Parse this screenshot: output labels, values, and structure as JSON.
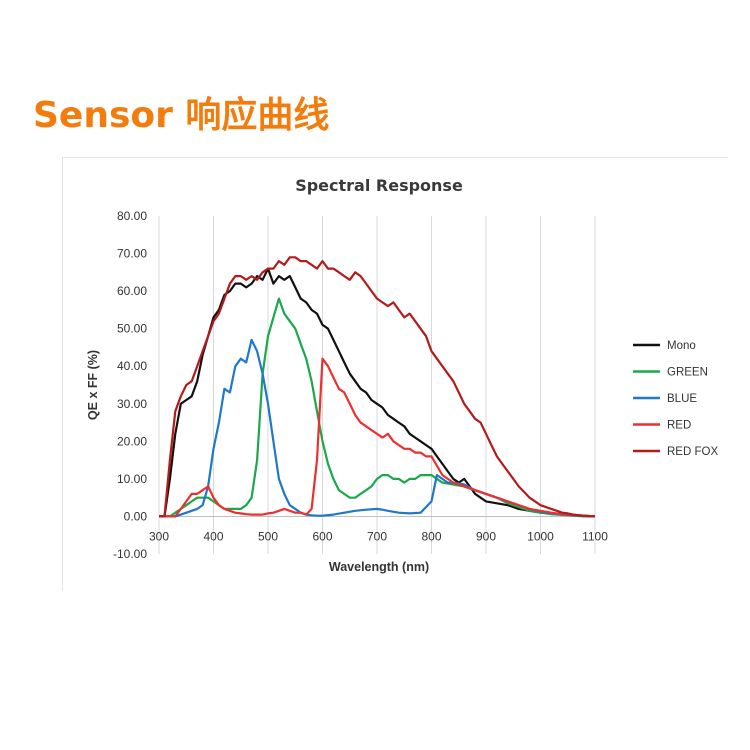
{
  "page": {
    "title": "Sensor 响应曲线",
    "title_color": "#f47c0c"
  },
  "chart_data": {
    "type": "line",
    "title": "Spectral Response",
    "xlabel": "Wavelength (nm)",
    "ylabel": "QE x FF (%)",
    "xlim": [
      300,
      1100
    ],
    "ylim": [
      -10,
      80
    ],
    "xticks": [
      300,
      400,
      500,
      600,
      700,
      800,
      900,
      1000,
      1100
    ],
    "xtick_labels": [
      "300",
      "400",
      "500",
      "600",
      "700",
      "800",
      "900",
      "1000",
      "1100"
    ],
    "yticks": [
      -10,
      0,
      10,
      20,
      30,
      40,
      50,
      60,
      70,
      80
    ],
    "ytick_labels": [
      "-10.00",
      "0.00",
      "10.00",
      "20.00",
      "30.00",
      "40.00",
      "50.00",
      "60.00",
      "70.00",
      "80.00"
    ],
    "grid": "vertical",
    "legend_position": "right",
    "series": [
      {
        "name": "Mono",
        "color": "#111111",
        "x": [
          300,
          310,
          320,
          330,
          340,
          350,
          360,
          370,
          380,
          390,
          400,
          410,
          420,
          430,
          440,
          450,
          460,
          470,
          480,
          490,
          500,
          510,
          520,
          530,
          540,
          550,
          560,
          570,
          580,
          590,
          600,
          610,
          620,
          630,
          640,
          650,
          660,
          670,
          680,
          690,
          700,
          710,
          720,
          730,
          740,
          750,
          760,
          770,
          780,
          790,
          800,
          810,
          820,
          830,
          840,
          850,
          860,
          870,
          880,
          890,
          900,
          920,
          940,
          960,
          980,
          1000,
          1020,
          1040,
          1060,
          1080,
          1100
        ],
        "y": [
          0,
          0,
          10,
          22,
          30,
          31,
          32,
          36,
          43,
          48,
          53,
          55,
          59,
          60,
          62,
          62,
          61,
          62,
          64,
          63,
          66,
          62,
          64,
          63,
          64,
          61,
          58,
          57,
          55,
          54,
          51,
          50,
          47,
          44,
          41,
          38,
          36,
          34,
          33,
          31,
          30,
          29,
          27,
          26,
          25,
          24,
          22,
          21,
          20,
          19,
          18,
          16,
          14,
          12,
          10,
          9,
          10,
          8,
          6,
          5,
          4,
          3.5,
          3,
          2,
          1.5,
          1,
          0.8,
          0.6,
          0.4,
          0.2,
          0
        ]
      },
      {
        "name": "GREEN",
        "color": "#1aa84b",
        "x": [
          300,
          320,
          340,
          350,
          360,
          370,
          380,
          390,
          400,
          410,
          420,
          430,
          440,
          450,
          460,
          470,
          480,
          490,
          500,
          510,
          520,
          530,
          540,
          550,
          560,
          570,
          580,
          590,
          600,
          610,
          620,
          630,
          640,
          650,
          660,
          670,
          680,
          690,
          700,
          710,
          720,
          730,
          740,
          750,
          760,
          770,
          780,
          790,
          800,
          810,
          820,
          840,
          860,
          880,
          900,
          920,
          940,
          960,
          980,
          1000,
          1020,
          1040,
          1060,
          1080,
          1100
        ],
        "y": [
          0,
          0,
          2,
          3,
          4,
          5,
          5,
          5,
          4,
          3,
          2,
          2,
          2,
          2,
          3,
          5,
          15,
          38,
          48,
          53,
          58,
          54,
          52,
          50,
          46,
          42,
          36,
          28,
          20,
          14,
          10,
          7,
          6,
          5,
          5,
          6,
          7,
          8,
          10,
          11,
          11,
          10,
          10,
          9,
          10,
          10,
          11,
          11,
          11,
          10,
          9,
          8.5,
          8,
          7,
          6,
          5,
          3.5,
          2.5,
          1.5,
          1,
          0.6,
          0.4,
          0.2,
          0,
          0
        ]
      },
      {
        "name": "BLUE",
        "color": "#1f78c8",
        "x": [
          300,
          330,
          350,
          360,
          370,
          380,
          390,
          400,
          410,
          420,
          430,
          440,
          450,
          460,
          470,
          480,
          490,
          500,
          510,
          520,
          530,
          540,
          550,
          560,
          570,
          580,
          590,
          600,
          620,
          640,
          660,
          680,
          700,
          710,
          720,
          740,
          760,
          780,
          800,
          810,
          820,
          830,
          840,
          860,
          880,
          900,
          920,
          940,
          960,
          980,
          1000,
          1020,
          1040,
          1060,
          1080,
          1100
        ],
        "y": [
          0,
          0,
          1,
          1.5,
          2,
          3,
          8,
          18,
          25,
          34,
          33,
          40,
          42,
          41,
          47,
          44,
          38,
          30,
          20,
          10,
          6,
          3,
          2,
          1,
          0.5,
          0.3,
          0.2,
          0.2,
          0.5,
          1,
          1.5,
          1.8,
          2,
          1.8,
          1.5,
          1,
          0.8,
          1,
          4,
          11,
          10,
          9,
          9,
          8.5,
          7,
          6,
          5,
          4,
          3,
          2,
          1.2,
          0.8,
          0.5,
          0.3,
          0.1,
          0
        ]
      },
      {
        "name": "RED",
        "color": "#ee2f2f",
        "x": [
          300,
          330,
          340,
          350,
          360,
          370,
          380,
          390,
          400,
          410,
          420,
          430,
          440,
          450,
          460,
          470,
          480,
          490,
          500,
          510,
          520,
          530,
          540,
          550,
          560,
          570,
          580,
          590,
          600,
          610,
          620,
          630,
          640,
          650,
          660,
          670,
          680,
          690,
          700,
          710,
          720,
          730,
          740,
          750,
          760,
          770,
          780,
          790,
          800,
          820,
          840,
          860,
          880,
          900,
          920,
          940,
          960,
          980,
          1000,
          1020,
          1040,
          1060,
          1080,
          1100
        ],
        "y": [
          0,
          0,
          2,
          4,
          6,
          6,
          7,
          8,
          5,
          3,
          2,
          1.5,
          1,
          0.8,
          0.6,
          0.5,
          0.5,
          0.5,
          0.8,
          1,
          1.5,
          2,
          1.5,
          1,
          1,
          0.5,
          2,
          15,
          42,
          40,
          37,
          34,
          33,
          30,
          27,
          25,
          24,
          23,
          22,
          21,
          22,
          20,
          19,
          18,
          18,
          17,
          17,
          16,
          16,
          11,
          9,
          8,
          7,
          6,
          5,
          4,
          3,
          2,
          1.5,
          1,
          0.6,
          0.4,
          0.2,
          0
        ]
      },
      {
        "name": "RED FOX",
        "color": "#b31b1b",
        "x": [
          300,
          310,
          320,
          330,
          340,
          350,
          360,
          370,
          380,
          390,
          400,
          410,
          420,
          430,
          440,
          450,
          460,
          470,
          480,
          490,
          500,
          510,
          520,
          530,
          540,
          550,
          560,
          570,
          580,
          590,
          600,
          610,
          620,
          630,
          640,
          650,
          660,
          670,
          680,
          690,
          700,
          710,
          720,
          730,
          740,
          750,
          760,
          770,
          780,
          790,
          800,
          810,
          820,
          830,
          840,
          850,
          860,
          870,
          880,
          890,
          900,
          910,
          920,
          930,
          940,
          950,
          960,
          970,
          980,
          990,
          1000,
          1010,
          1020,
          1030,
          1040,
          1050,
          1060,
          1070,
          1080,
          1090,
          1100
        ],
        "y": [
          0,
          0,
          15,
          28,
          32,
          35,
          36,
          40,
          44,
          48,
          52,
          54,
          58,
          62,
          64,
          64,
          63,
          64,
          63,
          65,
          66,
          66,
          68,
          67,
          69,
          69,
          68,
          68,
          67,
          66,
          68,
          66,
          66,
          65,
          64,
          63,
          65,
          64,
          62,
          60,
          58,
          57,
          56,
          57,
          55,
          53,
          54,
          52,
          50,
          48,
          44,
          42,
          40,
          38,
          36,
          33,
          30,
          28,
          26,
          25,
          22,
          19,
          16,
          14,
          12,
          10,
          8,
          6.5,
          5,
          4,
          3,
          2.5,
          2,
          1.5,
          1,
          0.8,
          0.5,
          0.3,
          0.2,
          0.1,
          0
        ]
      }
    ]
  }
}
